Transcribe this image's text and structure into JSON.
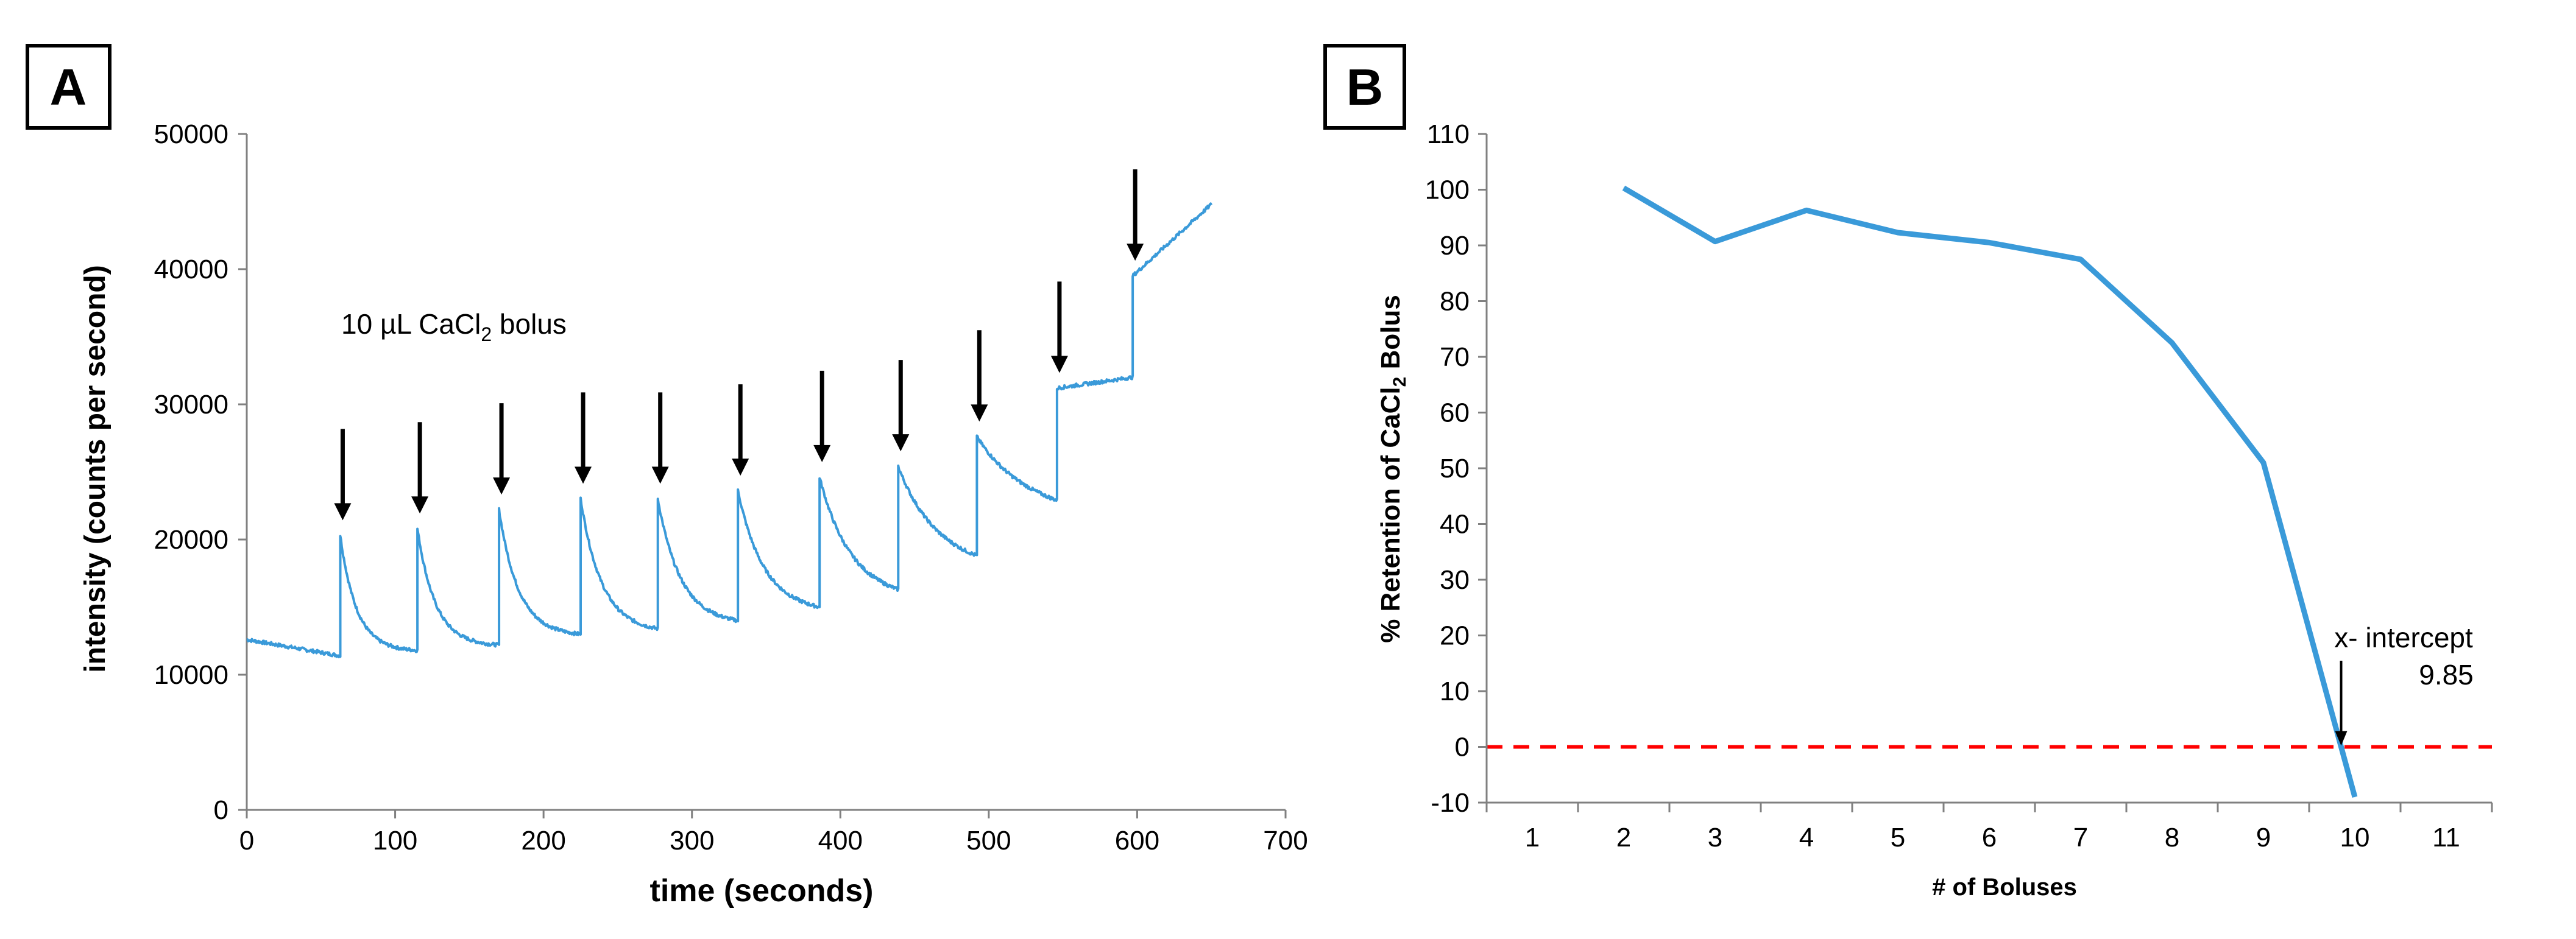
{
  "panels": [
    {
      "letter": "A"
    },
    {
      "letter": "B"
    }
  ],
  "chart_data": [
    {
      "type": "line",
      "title": "",
      "xlabel": "time (seconds)",
      "ylabel": "intensity (counts per second)",
      "xlim": [
        0,
        700
      ],
      "ylim": [
        0,
        50000
      ],
      "xticks": [
        0,
        100,
        200,
        300,
        400,
        500,
        600,
        700
      ],
      "yticks": [
        0,
        10000,
        20000,
        30000,
        40000,
        50000
      ],
      "annotation": {
        "prefix": "10 µL CaCl",
        "subscript": "2",
        "suffix": " bolus"
      },
      "bolus_times": [
        63,
        115,
        170,
        225,
        277,
        331,
        386,
        439,
        492,
        546,
        597
      ],
      "segments": [
        {
          "start": 0,
          "end": 63,
          "v0": 12600,
          "v1": 11400,
          "peak": null,
          "tau": null
        },
        {
          "start": 63,
          "end": 115,
          "v0": 20300,
          "v1": 11800,
          "peak": 20300,
          "tau": 11
        },
        {
          "start": 115,
          "end": 170,
          "v0": 20800,
          "v1": 12200,
          "peak": 20800,
          "tau": 12
        },
        {
          "start": 170,
          "end": 225,
          "v0": 22200,
          "v1": 13000,
          "peak": 22200,
          "tau": 13
        },
        {
          "start": 225,
          "end": 277,
          "v0": 23000,
          "v1": 13400,
          "peak": 23000,
          "tau": 14
        },
        {
          "start": 277,
          "end": 331,
          "v0": 23000,
          "v1": 14000,
          "peak": 23000,
          "tau": 15
        },
        {
          "start": 331,
          "end": 386,
          "v0": 23600,
          "v1": 15000,
          "peak": 23600,
          "tau": 17
        },
        {
          "start": 386,
          "end": 439,
          "v0": 24600,
          "v1": 16300,
          "peak": 24600,
          "tau": 20
        },
        {
          "start": 439,
          "end": 492,
          "v0": 25400,
          "v1": 18800,
          "peak": 25400,
          "tau": 24
        },
        {
          "start": 492,
          "end": 546,
          "v0": 27600,
          "v1": 22900,
          "peak": 27600,
          "tau": 30
        },
        {
          "start": 546,
          "end": 597,
          "v0": 31200,
          "v1": 32000,
          "peak": 31200,
          "tau": null
        },
        {
          "start": 597,
          "end": 650,
          "v0": 39500,
          "v1": 44800,
          "peak": 39500,
          "tau": null
        }
      ],
      "color": "#3a9ad9"
    },
    {
      "type": "line",
      "title": "",
      "xlabel": "# of Boluses",
      "ylabel": {
        "prefix": "% Retention of CaCl",
        "subscript": "2",
        "suffix": " Bolus"
      },
      "xlim": [
        0.5,
        11.5
      ],
      "ylim": [
        -10,
        110
      ],
      "xticks": [
        1,
        2,
        3,
        4,
        5,
        6,
        7,
        8,
        9,
        10,
        11
      ],
      "yticks": [
        -10,
        0,
        10,
        20,
        30,
        40,
        50,
        60,
        70,
        80,
        90,
        100,
        110
      ],
      "series": [
        {
          "name": "retention",
          "x": [
            2,
            3,
            4,
            5,
            6,
            7,
            8,
            9,
            10
          ],
          "y": [
            100.3,
            90.7,
            96.3,
            92.3,
            90.5,
            87.5,
            72.5,
            51,
            -9
          ]
        }
      ],
      "reference_line": {
        "y": 0,
        "color": "#ff0000",
        "style": "dashed"
      },
      "annotation": {
        "line1": "x- intercept",
        "line2": "9.85",
        "x": 9.85
      },
      "color": "#3a9ad9"
    }
  ]
}
